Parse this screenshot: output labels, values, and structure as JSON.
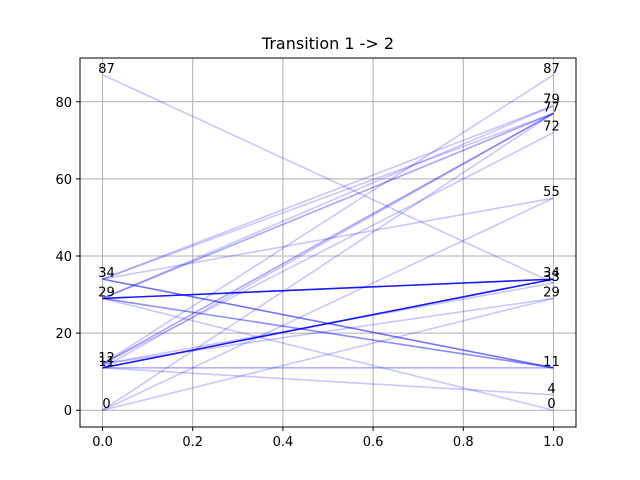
{
  "chart_data": {
    "type": "line",
    "title": "Transition 1 -> 2",
    "xlabel": "",
    "ylabel": "",
    "xlim": [
      -0.05,
      1.05
    ],
    "ylim": [
      -4.35,
      91.35
    ],
    "x_ticks": [
      0.0,
      0.2,
      0.4,
      0.6,
      0.8,
      1.0
    ],
    "x_tick_labels": [
      "0.0",
      "0.2",
      "0.4",
      "0.6",
      "0.8",
      "1.0"
    ],
    "y_ticks": [
      0,
      20,
      40,
      60,
      80
    ],
    "y_tick_labels": [
      "0",
      "20",
      "40",
      "60",
      "80"
    ],
    "grid": true,
    "line_color": "#0000ff",
    "left_labels": [
      {
        "text": "87",
        "y": 87
      },
      {
        "text": "34",
        "y": 34
      },
      {
        "text": "29",
        "y": 29
      },
      {
        "text": "12",
        "y": 12
      },
      {
        "text": "11",
        "y": 11
      },
      {
        "text": "0",
        "y": 0
      }
    ],
    "right_labels": [
      {
        "text": "87",
        "y": 87
      },
      {
        "text": "79",
        "y": 79
      },
      {
        "text": "77",
        "y": 77
      },
      {
        "text": "72",
        "y": 72
      },
      {
        "text": "55",
        "y": 55
      },
      {
        "text": "34",
        "y": 34
      },
      {
        "text": "33",
        "y": 33
      },
      {
        "text": "29",
        "y": 29
      },
      {
        "text": "11",
        "y": 11
      },
      {
        "text": "4",
        "y": 4
      },
      {
        "text": "0",
        "y": 0
      }
    ],
    "series": [
      {
        "from": 87,
        "to": 33,
        "opacity": 0.22
      },
      {
        "from": 34,
        "to": 11,
        "opacity": 0.55
      },
      {
        "from": 34,
        "to": 55,
        "opacity": 0.22
      },
      {
        "from": 34,
        "to": 79,
        "opacity": 0.22
      },
      {
        "from": 34,
        "to": 77,
        "opacity": 0.22
      },
      {
        "from": 29,
        "to": 34,
        "opacity": 0.9
      },
      {
        "from": 29,
        "to": 11,
        "opacity": 0.45
      },
      {
        "from": 29,
        "to": 0,
        "opacity": 0.22
      },
      {
        "from": 29,
        "to": 77,
        "opacity": 0.35
      },
      {
        "from": 29,
        "to": 79,
        "opacity": 0.22
      },
      {
        "from": 12,
        "to": 87,
        "opacity": 0.22
      },
      {
        "from": 12,
        "to": 72,
        "opacity": 0.22
      },
      {
        "from": 12,
        "to": 77,
        "opacity": 0.35
      },
      {
        "from": 12,
        "to": 29,
        "opacity": 0.22
      },
      {
        "from": 12,
        "to": 33,
        "opacity": 0.22
      },
      {
        "from": 11,
        "to": 34,
        "opacity": 0.9
      },
      {
        "from": 11,
        "to": 11,
        "opacity": 0.3
      },
      {
        "from": 11,
        "to": 4,
        "opacity": 0.22
      },
      {
        "from": 11,
        "to": 77,
        "opacity": 0.22
      },
      {
        "from": 0,
        "to": 29,
        "opacity": 0.22
      },
      {
        "from": 0,
        "to": 55,
        "opacity": 0.22
      },
      {
        "from": 0,
        "to": 77,
        "opacity": 0.22
      }
    ]
  }
}
